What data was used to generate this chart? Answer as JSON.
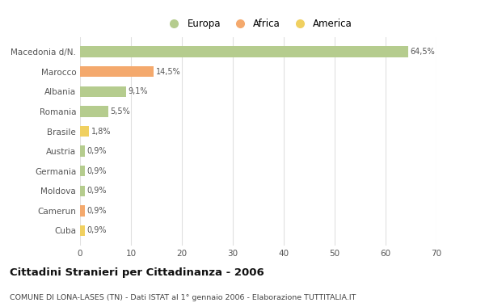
{
  "categories": [
    "Macedonia d/N.",
    "Marocco",
    "Albania",
    "Romania",
    "Brasile",
    "Austria",
    "Germania",
    "Moldova",
    "Camerun",
    "Cuba"
  ],
  "values": [
    64.5,
    14.5,
    9.1,
    5.5,
    1.8,
    0.9,
    0.9,
    0.9,
    0.9,
    0.9
  ],
  "labels": [
    "64,5%",
    "14,5%",
    "9,1%",
    "5,5%",
    "1,8%",
    "0,9%",
    "0,9%",
    "0,9%",
    "0,9%",
    "0,9%"
  ],
  "colors": [
    "#b5cc8e",
    "#f4a96d",
    "#b5cc8e",
    "#b5cc8e",
    "#f0d060",
    "#b5cc8e",
    "#b5cc8e",
    "#b5cc8e",
    "#f4a96d",
    "#f0d060"
  ],
  "legend_labels": [
    "Europa",
    "Africa",
    "America"
  ],
  "legend_colors": [
    "#b5cc8e",
    "#f4a96d",
    "#f0d060"
  ],
  "title": "Cittadini Stranieri per Cittadinanza - 2006",
  "subtitle": "COMUNE DI LONA-LASES (TN) - Dati ISTAT al 1° gennaio 2006 - Elaborazione TUTTITALIA.IT",
  "xlim": [
    0,
    70
  ],
  "xticks": [
    0,
    10,
    20,
    30,
    40,
    50,
    60,
    70
  ],
  "background_color": "#ffffff",
  "grid_color": "#e0e0e0"
}
